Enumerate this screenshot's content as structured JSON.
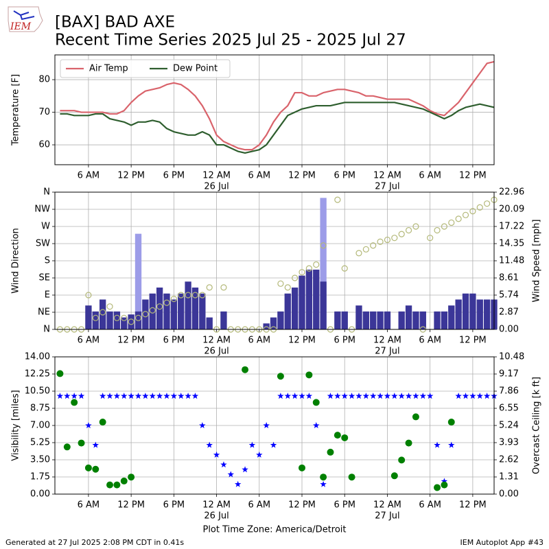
{
  "header": {
    "title_line1": "[BAX] BAD AXE",
    "title_line2": "Recent Time Series 2025 Jul 25 - 2025 Jul 27",
    "logo": "IEM"
  },
  "footer": {
    "left": "Generated at 27 Jul 2025 2:08 PM CDT in 0.41s",
    "right": "IEM Autoplot App #43"
  },
  "chart_data": [
    {
      "type": "line",
      "ylabel": "Temperature [F]",
      "legend": "upper left",
      "grid": true,
      "xlim": [
        "2025-07-25 01:17",
        "2025-07-27 15:00"
      ],
      "xticks": [
        {
          "value": "2025-07-25 06:00",
          "label": "6 AM"
        },
        {
          "value": "2025-07-25 12:00",
          "label": "12 PM"
        },
        {
          "value": "2025-07-25 18:00",
          "label": "6 PM"
        },
        {
          "value": "2025-07-26 00:00",
          "label": "12 AM",
          "date": "26 Jul"
        },
        {
          "value": "2025-07-26 06:00",
          "label": "6 AM"
        },
        {
          "value": "2025-07-26 12:00",
          "label": "12 PM"
        },
        {
          "value": "2025-07-26 18:00",
          "label": "6 PM"
        },
        {
          "value": "2025-07-27 00:00",
          "label": "12 AM",
          "date": "27 Jul"
        },
        {
          "value": "2025-07-27 06:00",
          "label": "6 AM"
        },
        {
          "value": "2025-07-27 12:00",
          "label": "12 PM"
        }
      ],
      "ylim": [
        53.9,
        87.6
      ],
      "yticks": [
        60,
        70,
        80
      ],
      "x": [
        "2025-07-25 02:00",
        "2025-07-25 03:00",
        "2025-07-25 04:00",
        "2025-07-25 05:00",
        "2025-07-25 06:00",
        "2025-07-25 07:00",
        "2025-07-25 08:00",
        "2025-07-25 09:00",
        "2025-07-25 10:00",
        "2025-07-25 11:00",
        "2025-07-25 12:00",
        "2025-07-25 13:00",
        "2025-07-25 14:00",
        "2025-07-25 15:00",
        "2025-07-25 16:00",
        "2025-07-25 17:00",
        "2025-07-25 18:00",
        "2025-07-25 19:00",
        "2025-07-25 20:00",
        "2025-07-25 21:00",
        "2025-07-25 22:00",
        "2025-07-25 23:00",
        "2025-07-26 00:00",
        "2025-07-26 01:00",
        "2025-07-26 02:00",
        "2025-07-26 03:00",
        "2025-07-26 04:00",
        "2025-07-26 05:00",
        "2025-07-26 06:00",
        "2025-07-26 07:00",
        "2025-07-26 08:00",
        "2025-07-26 09:00",
        "2025-07-26 10:00",
        "2025-07-26 11:00",
        "2025-07-26 12:00",
        "2025-07-26 13:00",
        "2025-07-26 14:00",
        "2025-07-26 15:00",
        "2025-07-26 16:00",
        "2025-07-26 17:00",
        "2025-07-26 18:00",
        "2025-07-26 19:00",
        "2025-07-26 20:00",
        "2025-07-26 21:00",
        "2025-07-26 22:00",
        "2025-07-26 23:00",
        "2025-07-27 00:00",
        "2025-07-27 01:00",
        "2025-07-27 02:00",
        "2025-07-27 03:00",
        "2025-07-27 04:00",
        "2025-07-27 05:00",
        "2025-07-27 06:00",
        "2025-07-27 07:00",
        "2025-07-27 08:00",
        "2025-07-27 09:00",
        "2025-07-27 10:00",
        "2025-07-27 11:00",
        "2025-07-27 12:00",
        "2025-07-27 13:00",
        "2025-07-27 14:00",
        "2025-07-27 15:00"
      ],
      "series": [
        {
          "name": "Air Temp",
          "color": "#d9636b",
          "values": [
            70.5,
            70.5,
            70.5,
            70,
            70,
            70,
            70,
            69.5,
            69.5,
            70.5,
            73,
            75,
            76.5,
            77,
            77.5,
            78.5,
            79,
            78.5,
            77,
            75,
            72,
            68,
            63,
            61,
            60,
            59,
            58.5,
            58.5,
            60,
            63,
            67,
            70,
            72,
            76,
            76,
            75,
            75,
            76,
            76.5,
            77,
            77,
            76.5,
            76,
            75,
            75,
            74.5,
            74,
            74,
            74,
            74,
            73,
            72,
            70.5,
            69.5,
            69,
            71,
            73,
            76,
            79,
            82,
            85,
            85.5
          ]
        },
        {
          "name": "Dew Point",
          "color": "#2e5e2e",
          "values": [
            69.5,
            69.5,
            69,
            69,
            69,
            69.5,
            69.5,
            68,
            67.5,
            67,
            66,
            67,
            67,
            67.5,
            67,
            65,
            64,
            63.5,
            63,
            63,
            64,
            63,
            60,
            60,
            59,
            58,
            57.5,
            58,
            58.5,
            60,
            63,
            66,
            69,
            70,
            71,
            71.5,
            72,
            72,
            72,
            72.5,
            73,
            73,
            73,
            73,
            73,
            73,
            73,
            73,
            72.5,
            72,
            71.5,
            71,
            70,
            69,
            68,
            69,
            70.5,
            71.5,
            72,
            72.5,
            72,
            71.5
          ]
        }
      ]
    },
    {
      "type": "bar",
      "ylabel": "Wind Direction",
      "y2label": "Wind Speed [mph]",
      "grid": true,
      "xlim": [
        "2025-07-25 01:17",
        "2025-07-27 15:00"
      ],
      "xticks": [
        {
          "value": "2025-07-25 06:00",
          "label": "6 AM"
        },
        {
          "value": "2025-07-25 12:00",
          "label": "12 PM"
        },
        {
          "value": "2025-07-25 18:00",
          "label": "6 PM"
        },
        {
          "value": "2025-07-26 00:00",
          "label": "12 AM",
          "date": "26 Jul"
        },
        {
          "value": "2025-07-26 06:00",
          "label": "6 AM"
        },
        {
          "value": "2025-07-26 12:00",
          "label": "12 PM"
        },
        {
          "value": "2025-07-26 18:00",
          "label": "6 PM"
        },
        {
          "value": "2025-07-27 00:00",
          "label": "12 AM",
          "date": "27 Jul"
        },
        {
          "value": "2025-07-27 06:00",
          "label": "6 AM"
        },
        {
          "value": "2025-07-27 12:00",
          "label": "12 PM"
        }
      ],
      "ylim": [
        0,
        360
      ],
      "yticks": [
        {
          "value": 0,
          "label": "N"
        },
        {
          "value": 45,
          "label": "NE"
        },
        {
          "value": 90,
          "label": "E"
        },
        {
          "value": 135,
          "label": "SE"
        },
        {
          "value": 180,
          "label": "S"
        },
        {
          "value": 225,
          "label": "SW"
        },
        {
          "value": 270,
          "label": "W"
        },
        {
          "value": 315,
          "label": "NW"
        },
        {
          "value": 360,
          "label": "N"
        }
      ],
      "y2lim": [
        0,
        22.96
      ],
      "y2ticks": [
        {
          "value": 0,
          "label": "0.00"
        },
        2.87,
        5.74,
        8.61,
        11.48,
        14.35,
        17.22,
        20.09,
        22.96
      ],
      "x": [
        "2025-07-25 02:00",
        "2025-07-25 03:00",
        "2025-07-25 04:00",
        "2025-07-25 05:00",
        "2025-07-25 06:00",
        "2025-07-25 07:00",
        "2025-07-25 08:00",
        "2025-07-25 09:00",
        "2025-07-25 10:00",
        "2025-07-25 11:00",
        "2025-07-25 12:00",
        "2025-07-25 13:00",
        "2025-07-25 14:00",
        "2025-07-25 15:00",
        "2025-07-25 16:00",
        "2025-07-25 17:00",
        "2025-07-25 18:00",
        "2025-07-25 19:00",
        "2025-07-25 20:00",
        "2025-07-25 21:00",
        "2025-07-25 22:00",
        "2025-07-25 23:00",
        "2025-07-26 00:00",
        "2025-07-26 01:00",
        "2025-07-26 02:00",
        "2025-07-26 03:00",
        "2025-07-26 04:00",
        "2025-07-26 05:00",
        "2025-07-26 06:00",
        "2025-07-26 07:00",
        "2025-07-26 08:00",
        "2025-07-26 09:00",
        "2025-07-26 10:00",
        "2025-07-26 11:00",
        "2025-07-26 12:00",
        "2025-07-26 13:00",
        "2025-07-26 14:00",
        "2025-07-26 15:00",
        "2025-07-26 16:00",
        "2025-07-26 17:00",
        "2025-07-26 18:00",
        "2025-07-26 19:00",
        "2025-07-26 20:00",
        "2025-07-26 21:00",
        "2025-07-26 22:00",
        "2025-07-26 23:00",
        "2025-07-27 00:00",
        "2025-07-27 01:00",
        "2025-07-27 02:00",
        "2025-07-27 03:00",
        "2025-07-27 04:00",
        "2025-07-27 05:00",
        "2025-07-27 06:00",
        "2025-07-27 07:00",
        "2025-07-27 08:00",
        "2025-07-27 09:00",
        "2025-07-27 10:00",
        "2025-07-27 11:00",
        "2025-07-27 12:00",
        "2025-07-27 13:00",
        "2025-07-27 14:00",
        "2025-07-27 15:00"
      ],
      "series": [
        {
          "type": "bar",
          "axis": "y2",
          "color": "#9c9ce8",
          "values": [
            null,
            null,
            null,
            null,
            null,
            null,
            null,
            null,
            null,
            null,
            null,
            16,
            null,
            null,
            null,
            null,
            null,
            null,
            null,
            null,
            null,
            null,
            null,
            null,
            null,
            null,
            null,
            null,
            null,
            null,
            null,
            null,
            null,
            null,
            null,
            null,
            null,
            22,
            null,
            null,
            null,
            null,
            null,
            null,
            null,
            null,
            null,
            null,
            null,
            null,
            null,
            null,
            null,
            null,
            null,
            null,
            null,
            null,
            null,
            null,
            null,
            null
          ]
        },
        {
          "type": "bar",
          "axis": "y2",
          "color": "#3b3698",
          "values": [
            0,
            0,
            0,
            0,
            4,
            3,
            5,
            3,
            3,
            2,
            2.5,
            3,
            5,
            6,
            7,
            6,
            5,
            6,
            8,
            7,
            6,
            2,
            0,
            3,
            0,
            0,
            0,
            0,
            0,
            1,
            2,
            3,
            6,
            7,
            9,
            10,
            10,
            8,
            0,
            3,
            3,
            0,
            4,
            3,
            3,
            3,
            3,
            0,
            3,
            4,
            3,
            3,
            0,
            3,
            3,
            4,
            5,
            6,
            6,
            5,
            5,
            5
          ]
        },
        {
          "type": "scatter",
          "marker": "circle-open",
          "color": "#b3b878",
          "values": [
            0,
            0,
            0,
            0,
            90,
            30,
            45,
            60,
            30,
            30,
            20,
            30,
            40,
            50,
            60,
            70,
            80,
            90,
            90,
            90,
            90,
            110,
            0,
            110,
            0,
            0,
            0,
            0,
            0,
            0,
            0,
            120,
            110,
            135,
            150,
            160,
            170,
            220,
            0,
            340,
            160,
            0,
            200,
            210,
            220,
            230,
            235,
            240,
            250,
            260,
            270,
            0,
            240,
            260,
            270,
            280,
            290,
            300,
            310,
            320,
            330,
            340
          ]
        }
      ]
    },
    {
      "type": "scatter",
      "ylabel": "Visibility [miles]",
      "y2label": "Overcast Ceiling [k ft]",
      "y2color": "#008000",
      "xlabel": "Plot Time Zone: America/Detroit",
      "grid": true,
      "xlim": [
        "2025-07-25 01:17",
        "2025-07-27 15:00"
      ],
      "xticks": [
        {
          "value": "2025-07-25 06:00",
          "label": "6 AM"
        },
        {
          "value": "2025-07-25 12:00",
          "label": "12 PM"
        },
        {
          "value": "2025-07-25 18:00",
          "label": "6 PM"
        },
        {
          "value": "2025-07-26 00:00",
          "label": "12 AM",
          "date": "26 Jul"
        },
        {
          "value": "2025-07-26 06:00",
          "label": "6 AM"
        },
        {
          "value": "2025-07-26 12:00",
          "label": "12 PM"
        },
        {
          "value": "2025-07-26 18:00",
          "label": "6 PM"
        },
        {
          "value": "2025-07-27 00:00",
          "label": "12 AM",
          "date": "27 Jul"
        },
        {
          "value": "2025-07-27 06:00",
          "label": "6 AM"
        },
        {
          "value": "2025-07-27 12:00",
          "label": "12 PM"
        }
      ],
      "ylim": [
        0,
        14
      ],
      "yticks": [
        {
          "value": 0,
          "label": "0.00"
        },
        1.75,
        {
          "value": 3.5,
          "label": "3.50"
        },
        5.25,
        {
          "value": 7,
          "label": "7.00"
        },
        8.75,
        {
          "value": 10.5,
          "label": "10.50"
        },
        12.25,
        {
          "value": 14,
          "label": "14.00"
        }
      ],
      "y2lim": [
        0,
        10.48
      ],
      "y2ticks": [
        {
          "value": 0,
          "label": "0.00"
        },
        1.31,
        2.62,
        3.93,
        5.24,
        6.55,
        7.86,
        9.17,
        10.48
      ],
      "x": [
        "2025-07-25 02:00",
        "2025-07-25 03:00",
        "2025-07-25 04:00",
        "2025-07-25 05:00",
        "2025-07-25 06:00",
        "2025-07-25 07:00",
        "2025-07-25 08:00",
        "2025-07-25 09:00",
        "2025-07-25 10:00",
        "2025-07-25 11:00",
        "2025-07-25 12:00",
        "2025-07-25 13:00",
        "2025-07-25 14:00",
        "2025-07-25 15:00",
        "2025-07-25 16:00",
        "2025-07-25 17:00",
        "2025-07-25 18:00",
        "2025-07-25 19:00",
        "2025-07-25 20:00",
        "2025-07-25 21:00",
        "2025-07-25 22:00",
        "2025-07-25 23:00",
        "2025-07-26 00:00",
        "2025-07-26 01:00",
        "2025-07-26 02:00",
        "2025-07-26 03:00",
        "2025-07-26 04:00",
        "2025-07-26 05:00",
        "2025-07-26 06:00",
        "2025-07-26 07:00",
        "2025-07-26 08:00",
        "2025-07-26 09:00",
        "2025-07-26 10:00",
        "2025-07-26 11:00",
        "2025-07-26 12:00",
        "2025-07-26 13:00",
        "2025-07-26 14:00",
        "2025-07-26 15:00",
        "2025-07-26 16:00",
        "2025-07-26 17:00",
        "2025-07-26 18:00",
        "2025-07-26 19:00",
        "2025-07-26 20:00",
        "2025-07-26 21:00",
        "2025-07-26 22:00",
        "2025-07-26 23:00",
        "2025-07-27 00:00",
        "2025-07-27 01:00",
        "2025-07-27 02:00",
        "2025-07-27 03:00",
        "2025-07-27 04:00",
        "2025-07-27 05:00",
        "2025-07-27 06:00",
        "2025-07-27 07:00",
        "2025-07-27 08:00",
        "2025-07-27 09:00",
        "2025-07-27 10:00",
        "2025-07-27 11:00",
        "2025-07-27 12:00",
        "2025-07-27 13:00",
        "2025-07-27 14:00",
        "2025-07-27 15:00"
      ],
      "series": [
        {
          "type": "scatter",
          "marker": "star",
          "color": "#0000ff",
          "values": [
            10,
            10,
            10,
            10,
            7,
            5,
            10,
            10,
            10,
            10,
            10,
            10,
            10,
            10,
            10,
            10,
            10,
            10,
            10,
            10,
            7,
            5,
            4,
            3,
            2,
            1,
            2.5,
            5,
            4,
            7,
            5,
            10,
            10,
            10,
            10,
            10,
            7,
            1,
            10,
            10,
            10,
            10,
            10,
            10,
            10,
            10,
            10,
            10,
            10,
            10,
            10,
            10,
            10,
            5,
            1.3,
            5,
            10,
            10,
            10,
            10,
            10,
            10
          ]
        },
        {
          "type": "scatter",
          "marker": "dot",
          "axis": "y2",
          "color": "#008000",
          "values": [
            9.2,
            3.6,
            7.0,
            3.9,
            2.0,
            1.9,
            5.5,
            0.7,
            0.7,
            1.0,
            1.3,
            null,
            null,
            null,
            null,
            null,
            null,
            null,
            null,
            null,
            null,
            null,
            null,
            null,
            null,
            null,
            9.5,
            null,
            null,
            null,
            null,
            9.0,
            null,
            null,
            2.0,
            9.1,
            7.0,
            1.3,
            3.2,
            4.5,
            4.3,
            1.3,
            null,
            null,
            null,
            null,
            null,
            1.4,
            2.6,
            3.9,
            5.9,
            null,
            null,
            0.5,
            0.7,
            5.5,
            null,
            null,
            null,
            null,
            null,
            null
          ]
        }
      ]
    }
  ]
}
